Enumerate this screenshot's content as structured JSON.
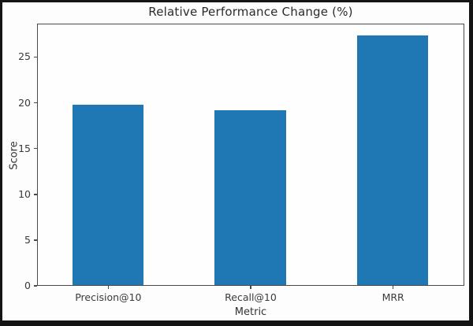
{
  "figure": {
    "title": "Relative Performance Change (%)",
    "xlabel": "Metric",
    "ylabel": "Score"
  },
  "chart_data": {
    "type": "bar",
    "categories": [
      "Precision@10",
      "Recall@10",
      "MRR"
    ],
    "values": [
      19.7,
      19.1,
      27.3
    ],
    "title": "Relative Performance Change (%)",
    "xlabel": "Metric",
    "ylabel": "Score",
    "ylim": [
      0,
      28.65
    ],
    "yticks": [
      0,
      5,
      10,
      15,
      20,
      25
    ],
    "bar_width_fraction": 0.5,
    "grid": false,
    "legend": "none"
  },
  "colors": {
    "bar": "#1f77b4",
    "text": "#3a3a3a",
    "spine": "#4a4a4a",
    "figure_background": "#fdfdfd",
    "outer_border": "#141414"
  }
}
